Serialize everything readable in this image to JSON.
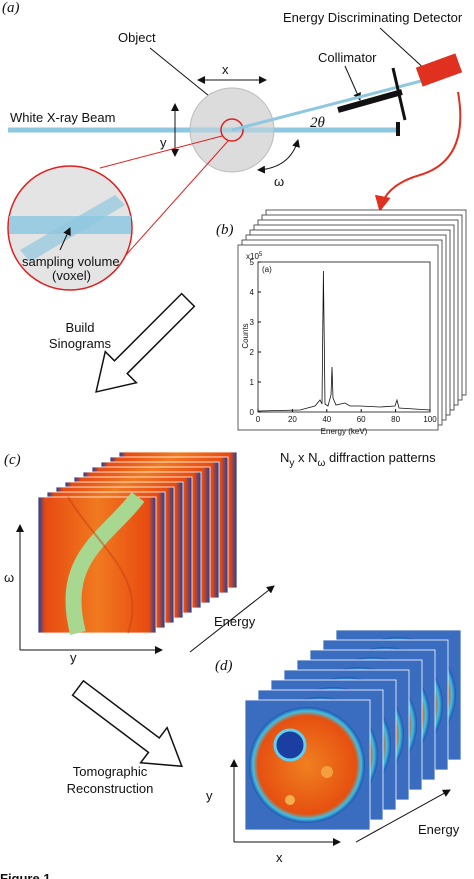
{
  "panel_a": {
    "label": "(a)",
    "detector": "Energy Discriminating Detector",
    "object": "Object",
    "collimator": "Collimator",
    "x": "x",
    "beam": "White X-ray Beam",
    "y": "y",
    "angle": "2θ",
    "omega": "ω",
    "voxel_1": "sampling volume",
    "voxel_2": "(voxel)"
  },
  "panel_b": {
    "label": "(b)",
    "caption_n1": "N",
    "caption_sub1": "y",
    "caption_mid": " x N",
    "caption_sub2": "ω",
    "caption_end": " diffraction patterns",
    "spectrum": {
      "inset_label": "(a)",
      "y_label": "Counts",
      "x_label": "Energy (keV)",
      "multiplier": "x10",
      "multiplier_exp": "5",
      "xlim": [
        0,
        100
      ],
      "xticks": [
        0,
        20,
        40,
        60,
        80,
        100
      ],
      "ylim": [
        0,
        5
      ],
      "yticks": [
        0,
        1,
        2,
        3,
        4,
        5
      ]
    }
  },
  "step_1": {
    "line_1": "Build",
    "line_2": "Sinograms"
  },
  "panel_c": {
    "label": "(c)",
    "omega": "ω",
    "y": "y",
    "energy": "Energy"
  },
  "step_2": {
    "line_1": "Tomographic",
    "line_2": "Reconstruction"
  },
  "panel_d": {
    "label": "(d)",
    "y": "y",
    "x": "x",
    "energy": "Energy"
  },
  "footer": "Figure 1"
}
